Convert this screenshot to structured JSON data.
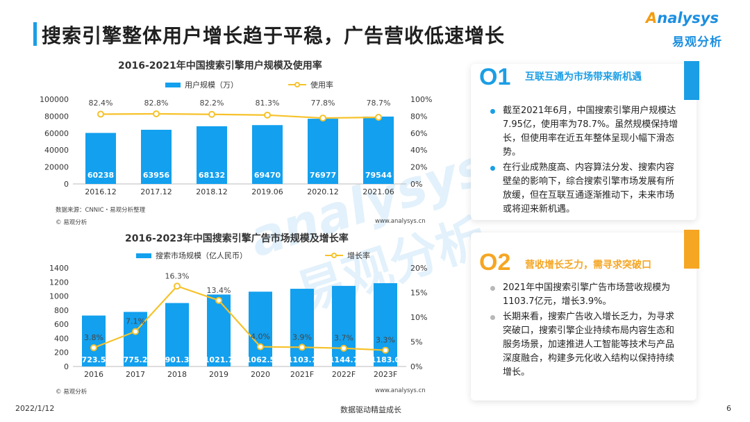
{
  "header": {
    "title": "搜索引擎整体用户增长趋于平稳，广告营收低速增长",
    "logo_en_a": "A",
    "logo_en_rest": "nalysys",
    "logo_cn": "易观分析"
  },
  "watermark": {
    "en": "analysys",
    "cn": "易观分析"
  },
  "chart1": {
    "title": "2016-2021年中国搜索引擎用户规模及使用率",
    "legend_bar": "用户规模（万）",
    "legend_line": "使用率",
    "source": "数据来源：CNNIC・易观分析整理",
    "copyright": "© 易观分析",
    "website": "www.analysys.cn"
  },
  "chart2": {
    "title": "2016-2023年中国搜索引擎广告市场规模及增长率",
    "legend_bar": "搜索市场规模（亿人民币）",
    "legend_line": "增长率",
    "copyright": "© 易观分析",
    "website": "www.analysys.cn"
  },
  "chart_data": [
    {
      "type": "bar",
      "title": "2016-2021年中国搜索引擎用户规模及使用率",
      "categories": [
        "2016.12",
        "2017.12",
        "2018.12",
        "2019.06",
        "2020.12",
        "2021.06"
      ],
      "series": [
        {
          "name": "用户规模（万）",
          "type": "bar",
          "axis": "left",
          "values": [
            60238,
            63956,
            68132,
            69470,
            76977,
            79544
          ]
        },
        {
          "name": "使用率",
          "type": "line",
          "axis": "right",
          "values": [
            82.4,
            82.8,
            82.2,
            81.3,
            77.8,
            78.7
          ],
          "labels": [
            "82.4%",
            "82.8%",
            "82.2%",
            "81.3%",
            "77.8%",
            "78.7%"
          ]
        }
      ],
      "ylim_left": [
        0,
        100000
      ],
      "yticks_left": [
        "0",
        "20000",
        "40000",
        "60000",
        "80000",
        "100000"
      ],
      "ylim_right": [
        0,
        100
      ],
      "yticks_right": [
        "0%",
        "20%",
        "40%",
        "60%",
        "80%",
        "100%"
      ],
      "grid": false,
      "legend": "top",
      "colors": {
        "bar": "#13a0ee",
        "line": "#f6c22a"
      }
    },
    {
      "type": "bar",
      "title": "2016-2023年中国搜索引擎广告市场规模及增长率",
      "categories": [
        "2016",
        "2017",
        "2018",
        "2019",
        "2020",
        "2021F",
        "2022F",
        "2023F"
      ],
      "series": [
        {
          "name": "搜索市场规模（亿人民币）",
          "type": "bar",
          "axis": "left",
          "values": [
            723.5,
            775.2,
            901.3,
            1021.7,
            1062.5,
            1103.7,
            1144.7,
            1183.0
          ],
          "labels": [
            "723.5",
            "775.2",
            "901.3",
            "1021.7",
            "1062.5",
            "1103.7",
            "1144.7",
            "1183.0"
          ]
        },
        {
          "name": "增长率",
          "type": "line",
          "axis": "right",
          "values": [
            3.8,
            7.1,
            16.3,
            13.4,
            4.0,
            3.9,
            3.7,
            3.3
          ],
          "labels": [
            "3.8%",
            "7.1%",
            "16.3%",
            "13.4%",
            "4.0%",
            "3.9%",
            "3.7%",
            "3.3%"
          ]
        }
      ],
      "ylim_left": [
        0,
        1400
      ],
      "yticks_left": [
        "0",
        "200",
        "400",
        "600",
        "800",
        "1000",
        "1200",
        "1400"
      ],
      "ylim_right": [
        0,
        20
      ],
      "yticks_right": [
        "0%",
        "5%",
        "10%",
        "15%",
        "20%"
      ],
      "grid": false,
      "legend": "top",
      "colors": {
        "bar": "#13a0ee",
        "line": "#f6c22a"
      }
    }
  ],
  "panel1": {
    "num": "O1",
    "heading": "互联互通为市场带来新机遇",
    "color": "#1b9ee5",
    "bullets": [
      "截至2021年6月，中国搜索引擎用户规模达7.95亿，使用率为78.7%。虽然规模保持增长，但使用率在近五年整体呈现小幅下滑态势。",
      "在行业成熟度高、内容算法分发、搜索内容壁垒的影响下，综合搜索引擎市场发展有所放缓，但在互联互通逐渐推动下，未来市场或将迎来新机遇。"
    ]
  },
  "panel2": {
    "num": "O2",
    "heading": "营收增长乏力，需寻求突破口",
    "color": "#f5a623",
    "bullets": [
      "2021年中国搜索引擎广告市场营收规模为1103.7亿元，增长3.9%。",
      "长期来看，搜索广告收入增长乏力，为寻求突破口，搜索引擎企业持续布局内容生态和服务场景，加速推进人工智能等技术与产品深度融合，构建多元化收入结构以保持持续增长。"
    ]
  },
  "footer": {
    "date": "2022/1/12",
    "slogan": "数据驱动精益成长",
    "page": "6"
  }
}
